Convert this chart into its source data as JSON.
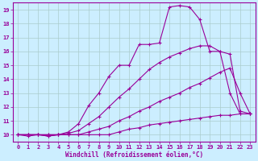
{
  "xlabel": "Windchill (Refroidissement éolien,°C)",
  "background_color": "#cceeff",
  "grid_color": "#aacccc",
  "line_color": "#990099",
  "xlim": [
    -0.5,
    23.5
  ],
  "ylim": [
    9.5,
    19.5
  ],
  "xticks": [
    0,
    1,
    2,
    3,
    4,
    5,
    6,
    7,
    8,
    9,
    10,
    11,
    12,
    13,
    14,
    15,
    16,
    17,
    18,
    19,
    20,
    21,
    22,
    23
  ],
  "yticks": [
    10,
    11,
    12,
    13,
    14,
    15,
    16,
    17,
    18,
    19
  ],
  "series": [
    {
      "x": [
        0,
        1,
        2,
        3,
        4,
        5,
        6,
        7,
        8,
        9,
        10,
        11,
        12,
        13,
        14,
        15,
        16,
        17,
        18,
        19,
        20,
        21,
        22,
        23
      ],
      "y": [
        10,
        10,
        10,
        10,
        10,
        10,
        10,
        10,
        10,
        10,
        10.2,
        10.4,
        10.5,
        10.7,
        10.8,
        10.9,
        11.0,
        11.1,
        11.2,
        11.3,
        11.4,
        11.4,
        11.5,
        11.5
      ]
    },
    {
      "x": [
        0,
        1,
        2,
        3,
        4,
        5,
        6,
        7,
        8,
        9,
        10,
        11,
        12,
        13,
        14,
        15,
        16,
        17,
        18,
        19,
        20,
        21,
        22,
        23
      ],
      "y": [
        10,
        10,
        10,
        10,
        10,
        10,
        10,
        10.2,
        10.4,
        10.6,
        11.0,
        11.3,
        11.7,
        12.0,
        12.4,
        12.7,
        13.0,
        13.4,
        13.7,
        14.1,
        14.5,
        14.8,
        13.0,
        11.5
      ]
    },
    {
      "x": [
        0,
        1,
        2,
        3,
        4,
        5,
        6,
        7,
        8,
        9,
        10,
        11,
        12,
        13,
        14,
        15,
        16,
        17,
        18,
        19,
        20,
        21,
        22,
        23
      ],
      "y": [
        10,
        10,
        10,
        9.9,
        10,
        10.1,
        10.3,
        10.8,
        11.3,
        12.0,
        12.7,
        13.3,
        14.0,
        14.7,
        15.2,
        15.6,
        15.9,
        16.2,
        16.4,
        16.4,
        16.0,
        13.0,
        11.5,
        11.5
      ]
    },
    {
      "x": [
        0,
        1,
        2,
        3,
        4,
        5,
        6,
        7,
        8,
        9,
        10,
        11,
        12,
        13,
        14,
        15,
        16,
        17,
        18,
        19,
        20,
        21,
        22,
        23
      ],
      "y": [
        10,
        9.9,
        10,
        9.9,
        10,
        10.2,
        10.8,
        12.1,
        13.0,
        14.2,
        15.0,
        15.0,
        16.5,
        16.5,
        16.6,
        19.2,
        19.3,
        19.2,
        18.3,
        16.0,
        16.0,
        15.8,
        11.7,
        11.5
      ]
    }
  ]
}
